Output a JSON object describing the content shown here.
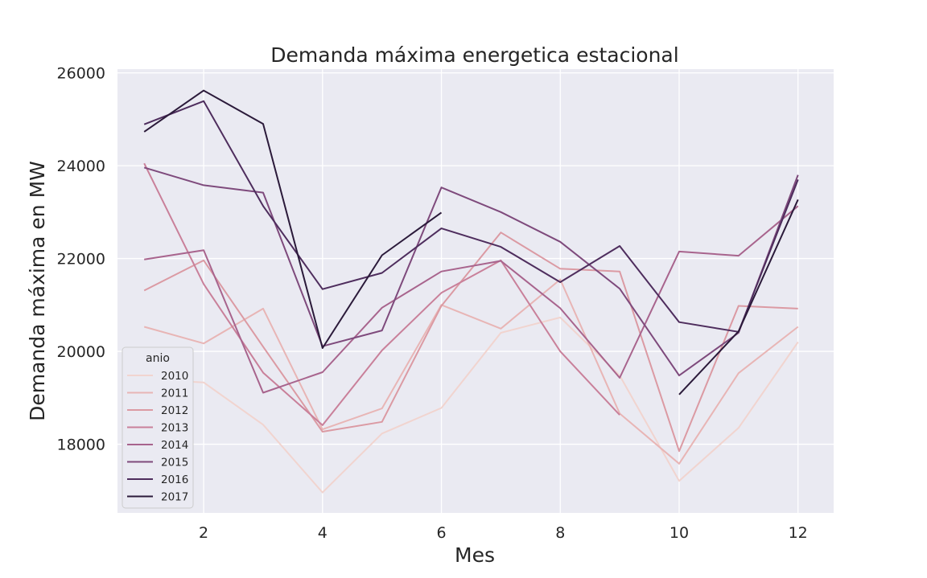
{
  "chart_data": {
    "type": "line",
    "title": "Demanda máxima energetica estacional",
    "xlabel": "Mes",
    "ylabel": "Demanda máxima en MW",
    "xlim": [
      0.55,
      12.6
    ],
    "ylim": [
      16520,
      26080
    ],
    "xticks": [
      2,
      4,
      6,
      8,
      10,
      12
    ],
    "yticks": [
      18000,
      20000,
      22000,
      24000,
      26000
    ],
    "grid": true,
    "background": "#eaeaf2",
    "legend": {
      "title": "anio",
      "placement": "lower-left"
    },
    "series": [
      {
        "name": "2010",
        "color": "#f1d4cf",
        "x": [
          1,
          2,
          3,
          4,
          5,
          6,
          7,
          8,
          9,
          10,
          11,
          12
        ],
        "y": [
          19400,
          19330,
          18420,
          16960,
          18230,
          18780,
          20400,
          20730,
          19480,
          17210,
          18350,
          20200
        ]
      },
      {
        "name": "2011",
        "color": "#e8b5b5",
        "x": [
          1,
          2,
          3,
          4,
          5,
          6,
          7,
          8,
          9,
          10,
          11,
          12
        ],
        "y": [
          20530,
          20170,
          20920,
          18320,
          18770,
          21000,
          20490,
          21550,
          18660,
          17580,
          19530,
          20530
        ]
      },
      {
        "name": "2012",
        "color": "#db9aa3",
        "x": [
          1,
          2,
          3,
          4,
          5,
          6,
          7,
          8,
          9,
          10,
          11,
          12
        ],
        "y": [
          21310,
          21960,
          20100,
          18270,
          18480,
          20980,
          22560,
          21780,
          21720,
          17850,
          20980,
          20920
        ]
      },
      {
        "name": "2013",
        "color": "#c9809a",
        "x": [
          1,
          2,
          3,
          4,
          5,
          6,
          7,
          8,
          9,
          10,
          11,
          12
        ],
        "y": [
          24050,
          21450,
          19540,
          18410,
          20020,
          21260,
          21960,
          20000,
          18630,
          null,
          null,
          null
        ]
      },
      {
        "name": "2014",
        "color": "#a8648d",
        "x": [
          1,
          2,
          3,
          4,
          5,
          6,
          7,
          8,
          9,
          10,
          11,
          12
        ],
        "y": [
          21980,
          22180,
          19110,
          19550,
          20940,
          21720,
          21950,
          20930,
          19430,
          22150,
          22060,
          23130
        ]
      },
      {
        "name": "2015",
        "color": "#7e4a7c",
        "x": [
          1,
          2,
          3,
          4,
          5,
          6,
          7,
          8,
          9,
          10,
          11,
          12
        ],
        "y": [
          23960,
          23580,
          23420,
          20110,
          20450,
          23530,
          23000,
          22360,
          21350,
          19480,
          20400,
          23800
        ]
      },
      {
        "name": "2016",
        "color": "#4e2d5d",
        "x": [
          1,
          2,
          3,
          4,
          5,
          6,
          7,
          8,
          9,
          10,
          11,
          12
        ],
        "y": [
          24890,
          25390,
          23130,
          21340,
          21690,
          22650,
          22250,
          21490,
          22270,
          20630,
          20420,
          23700
        ]
      },
      {
        "name": "2017",
        "color": "#2b1a3a",
        "x": [
          1,
          2,
          3,
          4,
          5,
          6,
          7,
          8,
          9,
          10,
          11,
          12
        ],
        "y": [
          24730,
          25620,
          24900,
          20070,
          22070,
          22990,
          null,
          null,
          null,
          19070,
          20430,
          23270
        ]
      }
    ]
  }
}
